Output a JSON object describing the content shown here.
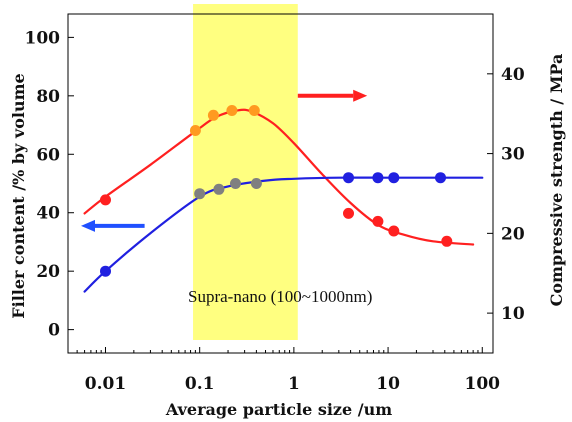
{
  "chart_data": {
    "type": "scatter",
    "x_axis": {
      "label": "Average particle size /um",
      "scale": "log",
      "range": [
        0.004,
        130
      ],
      "ticks": [
        0.01,
        0.1,
        1,
        10,
        100
      ],
      "tick_labels": [
        "0.01",
        "0.1",
        "1",
        "10",
        "100"
      ]
    },
    "y_left": {
      "label": "Filler content /% by volume",
      "range": [
        -8,
        108
      ],
      "ticks": [
        0,
        20,
        40,
        60,
        80,
        100
      ],
      "tick_labels": [
        "0",
        "20",
        "40",
        "60",
        "80",
        "100"
      ]
    },
    "y_right": {
      "label": "Compressive strength / MPa",
      "range": [
        5,
        47.5
      ],
      "ticks": [
        10,
        20,
        30,
        40
      ],
      "tick_labels": [
        "10",
        "20",
        "30",
        "40"
      ]
    },
    "highlight": {
      "x_range": [
        0.085,
        1.1
      ],
      "label": "Supra-nano (100~1000nm)",
      "color": "#ffff80"
    },
    "series": [
      {
        "axis": "right",
        "color": "#ff2020",
        "points": [
          [
            0.01,
            24.2
          ],
          [
            0.09,
            32.9
          ],
          [
            0.14,
            34.8
          ],
          [
            0.22,
            35.4
          ],
          [
            0.38,
            35.4
          ],
          [
            3.8,
            22.5
          ],
          [
            7.8,
            21.5
          ],
          [
            11.5,
            20.3
          ],
          [
            42,
            19.0
          ]
        ],
        "curve": [
          [
            0.006,
            22.5
          ],
          [
            0.01,
            24.6
          ],
          [
            0.03,
            28.6
          ],
          [
            0.09,
            32.8
          ],
          [
            0.15,
            34.6
          ],
          [
            0.25,
            35.4
          ],
          [
            0.35,
            35.3
          ],
          [
            0.6,
            33.8
          ],
          [
            1.0,
            31.3
          ],
          [
            2.0,
            27.4
          ],
          [
            4.0,
            23.8
          ],
          [
            8.0,
            21.0
          ],
          [
            15.0,
            19.8
          ],
          [
            30.0,
            19.0
          ],
          [
            80.0,
            18.6
          ]
        ]
      },
      {
        "axis": "left",
        "color": "#2020e0",
        "points": [
          [
            0.01,
            20
          ],
          [
            0.1,
            46.5
          ],
          [
            0.16,
            48
          ],
          [
            0.24,
            50
          ],
          [
            0.4,
            50
          ],
          [
            3.8,
            52
          ],
          [
            7.8,
            52
          ],
          [
            11.5,
            52
          ],
          [
            36,
            52
          ]
        ],
        "curve": [
          [
            0.006,
            13
          ],
          [
            0.01,
            20
          ],
          [
            0.03,
            33
          ],
          [
            0.1,
            45.5
          ],
          [
            0.2,
            49
          ],
          [
            0.5,
            51
          ],
          [
            1.0,
            51.6
          ],
          [
            3.0,
            52
          ],
          [
            10.0,
            52
          ],
          [
            40.0,
            52
          ],
          [
            100.0,
            52
          ]
        ]
      }
    ],
    "arrows": [
      {
        "direction": "left",
        "color": "#2050ff",
        "x_from": 0.026,
        "x_to": 0.0055,
        "y": 35.5,
        "axis": "left"
      },
      {
        "direction": "right",
        "color": "#ff2020",
        "x_from": 1.1,
        "x_to": 6.0,
        "y": 80,
        "axis": "left"
      }
    ]
  }
}
